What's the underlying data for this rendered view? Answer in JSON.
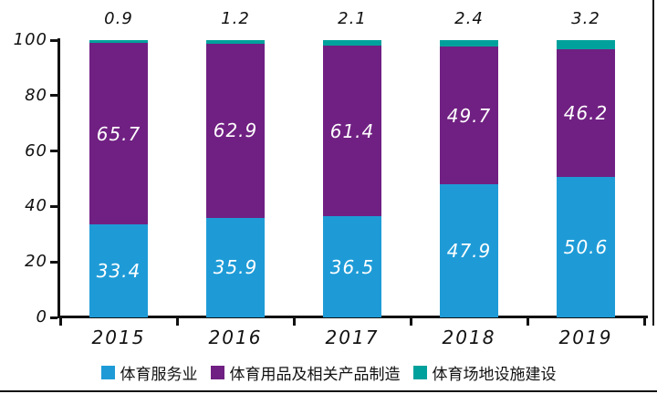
{
  "chart_data": {
    "type": "bar",
    "stacked": true,
    "title": "",
    "categories": [
      "2015",
      "2016",
      "2017",
      "2018",
      "2019"
    ],
    "series": [
      {
        "name": "体育服务业",
        "color": "#1E9BD7",
        "values": [
          33.4,
          35.9,
          36.5,
          47.9,
          50.6
        ],
        "label_style": "inside"
      },
      {
        "name": "体育用品及相关产品制造",
        "color": "#702082",
        "values": [
          65.7,
          62.9,
          61.4,
          49.7,
          46.2
        ],
        "label_style": "inside"
      },
      {
        "name": "体育场地设施建设",
        "color": "#00A19C",
        "values": [
          0.9,
          1.2,
          2.1,
          2.4,
          3.2
        ],
        "label_style": "above-bar"
      }
    ],
    "y_axis": {
      "min": 0,
      "max": 100,
      "ticks": [
        0,
        20,
        40,
        60,
        80,
        100
      ]
    },
    "x_axis": {
      "labels": [
        "2015",
        "2016",
        "2017",
        "2018",
        "2019"
      ]
    },
    "legend_position": "bottom",
    "grid": false,
    "colors": {
      "axis": "#111111",
      "inside_label": "#FFFFFF",
      "outside_label": "#111111"
    }
  }
}
